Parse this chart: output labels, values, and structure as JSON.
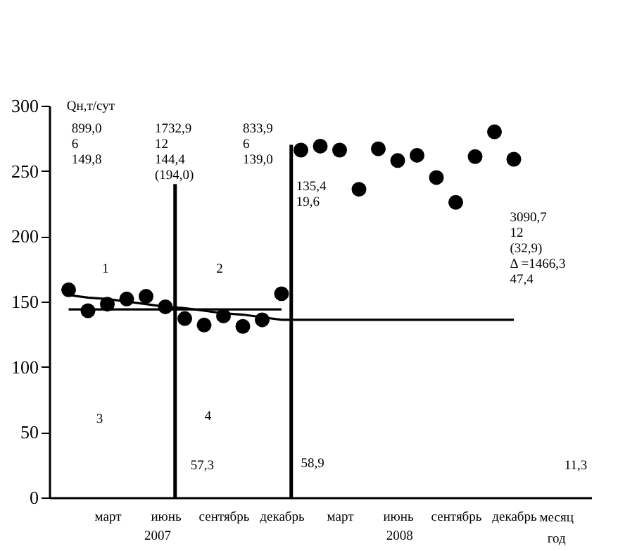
{
  "chart_data": {
    "type": "scatter",
    "ylabel": "Qн,т/сут",
    "xlabel": "месяц\nгод",
    "categories": [
      null,
      null,
      "март",
      null,
      null,
      "июнь",
      null,
      null,
      "сентябрь",
      null,
      null,
      "декабрь",
      null,
      null,
      "март",
      null,
      null,
      "июнь",
      null,
      null,
      "сентябрь",
      null,
      null,
      "декабрь",
      null,
      null,
      null
    ],
    "series": [
      {
        "color": "#000000",
        "marker": "circle",
        "values": [
          159,
          143,
          148,
          152,
          154,
          146,
          137,
          132,
          139,
          131,
          136,
          156,
          266,
          269,
          266,
          236,
          267,
          258,
          262,
          245,
          226,
          261,
          280,
          259,
          null,
          null,
          null
        ]
      },
      {
        "type": "line",
        "color": "#000000",
        "values": [
          144,
          144,
          144,
          144,
          144,
          144,
          144,
          144,
          144,
          144,
          144,
          144,
          null,
          null,
          null,
          null,
          null,
          null,
          null,
          null,
          null,
          null,
          null,
          null,
          null,
          null,
          null
        ]
      },
      {
        "type": "line",
        "color": "#000000",
        "values": [
          155,
          153,
          152,
          150,
          148,
          146,
          145,
          143,
          141,
          140,
          138,
          136,
          136,
          136,
          136,
          136,
          136,
          136,
          136,
          136,
          136,
          136,
          136,
          136,
          null,
          null,
          null
        ]
      }
    ],
    "ylim": [
      0,
      300
    ],
    "yticks": [
      0,
      50,
      100,
      150,
      200,
      250,
      300
    ],
    "grid": false,
    "annotations": [
      "899,0\n6\n149,8",
      "1732,9\n12\n144,4\n(194,0)",
      "833,9\n6\n139,0",
      "135,4\n19,6",
      "3090,7\n12\n(32,9)\nΔ =1466,3\n47,4",
      "1",
      "2",
      "3",
      "4",
      "57,3",
      "58,9",
      "11,3",
      "2007",
      "2008"
    ]
  }
}
